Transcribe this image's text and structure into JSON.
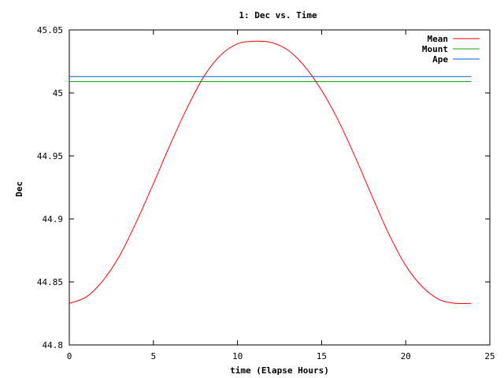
{
  "chart_data": {
    "type": "line",
    "title": "1: Dec vs. Time",
    "xlabel": "time (Elapse Hours)",
    "ylabel": "Dec",
    "xlim": [
      0,
      25
    ],
    "ylim": [
      44.8,
      45.05
    ],
    "xticks": [
      "0",
      "5",
      "10",
      "15",
      "20",
      "25"
    ],
    "yticks": [
      "44.8",
      "44.85",
      "44.9",
      "44.95",
      "45",
      "45.05"
    ],
    "grid": false,
    "legend_position": "top-right",
    "series": [
      {
        "name": "Mean",
        "color": "#ff0000",
        "x": [
          0,
          1,
          2,
          3,
          4,
          5,
          6,
          7,
          8,
          9,
          10,
          11,
          12,
          13,
          14,
          15,
          16,
          17,
          18,
          19,
          20,
          21,
          22,
          23,
          23.9
        ],
        "y": [
          44.833,
          44.838,
          44.851,
          44.871,
          44.898,
          44.928,
          44.959,
          44.988,
          45.013,
          45.03,
          45.039,
          45.041,
          45.04,
          45.034,
          45.021,
          45.002,
          44.978,
          44.949,
          44.918,
          44.888,
          44.863,
          44.846,
          44.836,
          44.833,
          44.833
        ]
      },
      {
        "name": "Mount",
        "color": "#00a000",
        "x": [
          0,
          23.9
        ],
        "y": [
          45.009,
          45.009
        ]
      },
      {
        "name": "Ape",
        "color": "#0066cc",
        "x": [
          0,
          23.9
        ],
        "y": [
          45.013,
          45.013
        ]
      }
    ]
  }
}
